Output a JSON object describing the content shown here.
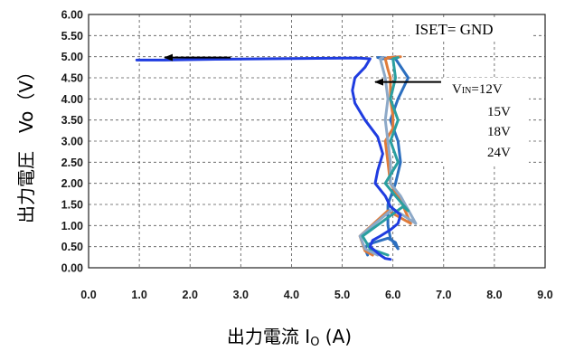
{
  "chart_data": {
    "type": "line",
    "xlabel": {
      "main": "出力電流 I",
      "sub": "O",
      "unit": " (A)"
    },
    "ylabel": "出力電圧　Vo（V）",
    "xlim": [
      0,
      9
    ],
    "ylim": [
      0,
      6
    ],
    "x_ticks": [
      "0.0",
      "1.0",
      "2.0",
      "3.0",
      "4.0",
      "5.0",
      "6.0",
      "7.0",
      "8.0",
      "9.0"
    ],
    "y_ticks": [
      "0.00",
      "0.50",
      "1.00",
      "1.50",
      "2.00",
      "2.50",
      "3.00",
      "3.50",
      "4.00",
      "4.50",
      "5.00",
      "5.50",
      "6.00"
    ],
    "grid": true,
    "annotations": {
      "condition": "ISET= GND",
      "vin_prefix": "V",
      "vin_sub": "IN",
      "vin_first": "=12V",
      "vin_rest": [
        "15V",
        "18V",
        "24V"
      ]
    },
    "arrows": [
      {
        "from": [
          2.8,
          4.98
        ],
        "to": [
          1.5,
          4.98
        ]
      },
      {
        "from": [
          6.95,
          4.4
        ],
        "to": [
          5.65,
          4.4
        ]
      }
    ],
    "series": [
      {
        "vin": "12V",
        "color": "#2c6fbf",
        "x": [
          5.5,
          5.45,
          5.5,
          5.9,
          6.05,
          6.1,
          5.95,
          5.9,
          5.9,
          6.05,
          6.15,
          6.1,
          5.95,
          6.1,
          6.3,
          6.05,
          5.75,
          5.7,
          5.8,
          6.05
        ],
        "y": [
          0.3,
          0.45,
          0.55,
          0.7,
          0.6,
          0.45,
          0.7,
          1.0,
          1.5,
          2.0,
          2.5,
          3.0,
          3.5,
          4.0,
          4.5,
          4.95,
          4.98,
          4.98,
          4.95,
          5.0
        ]
      },
      {
        "vin": "15V",
        "color": "#e07b39",
        "x": [
          5.6,
          5.45,
          5.35,
          5.9,
          6.35,
          6.15,
          5.95,
          5.9,
          5.85,
          6.0,
          6.0,
          5.95,
          5.95,
          5.9,
          5.85,
          5.95,
          5.9,
          6.15
        ],
        "y": [
          0.3,
          0.4,
          0.75,
          1.35,
          1.05,
          1.6,
          2.0,
          2.5,
          3.0,
          3.3,
          3.6,
          4.0,
          4.5,
          4.7,
          4.95,
          4.98,
          4.98,
          5.0
        ]
      },
      {
        "vin": "18V",
        "color": "#8da9c8",
        "x": [
          5.7,
          5.45,
          5.35,
          6.0,
          6.45,
          6.15,
          5.95,
          5.95,
          5.9,
          5.85,
          5.9,
          5.85,
          5.75,
          5.8
        ],
        "y": [
          0.3,
          0.45,
          0.75,
          1.4,
          1.05,
          1.7,
          2.0,
          2.5,
          3.0,
          3.5,
          4.0,
          4.5,
          4.95,
          4.98
        ]
      },
      {
        "vin": "24V",
        "color": "#2a9fa0",
        "x": [
          5.9,
          5.55,
          5.4,
          6.2,
          6.3,
          6.05,
          5.85,
          6.1,
          5.95,
          6.1,
          5.95,
          6.05,
          6.0,
          6.1
        ],
        "y": [
          0.3,
          0.45,
          0.75,
          1.45,
          1.35,
          1.7,
          2.0,
          2.5,
          3.0,
          3.5,
          4.0,
          4.5,
          4.95,
          4.98
        ]
      },
      {
        "vin": "12V trace",
        "color": "#1f3ce0",
        "x": [
          0.95,
          1.5,
          2.5,
          3.5,
          4.5,
          5.3,
          5.55,
          5.45,
          5.25,
          5.2,
          5.25,
          5.45,
          5.7,
          5.8,
          5.7,
          5.65,
          5.85,
          5.95,
          6.15,
          6.1,
          5.95,
          5.75,
          5.6,
          5.55,
          5.65,
          5.75,
          5.85,
          5.95
        ],
        "y": [
          4.92,
          4.92,
          4.94,
          4.95,
          4.96,
          4.97,
          4.95,
          4.75,
          4.5,
          4.2,
          3.9,
          3.5,
          3.1,
          2.7,
          2.3,
          2.0,
          1.7,
          1.45,
          1.25,
          1.05,
          0.9,
          0.75,
          0.65,
          0.5,
          0.4,
          0.3,
          0.22,
          0.2
        ]
      }
    ]
  }
}
